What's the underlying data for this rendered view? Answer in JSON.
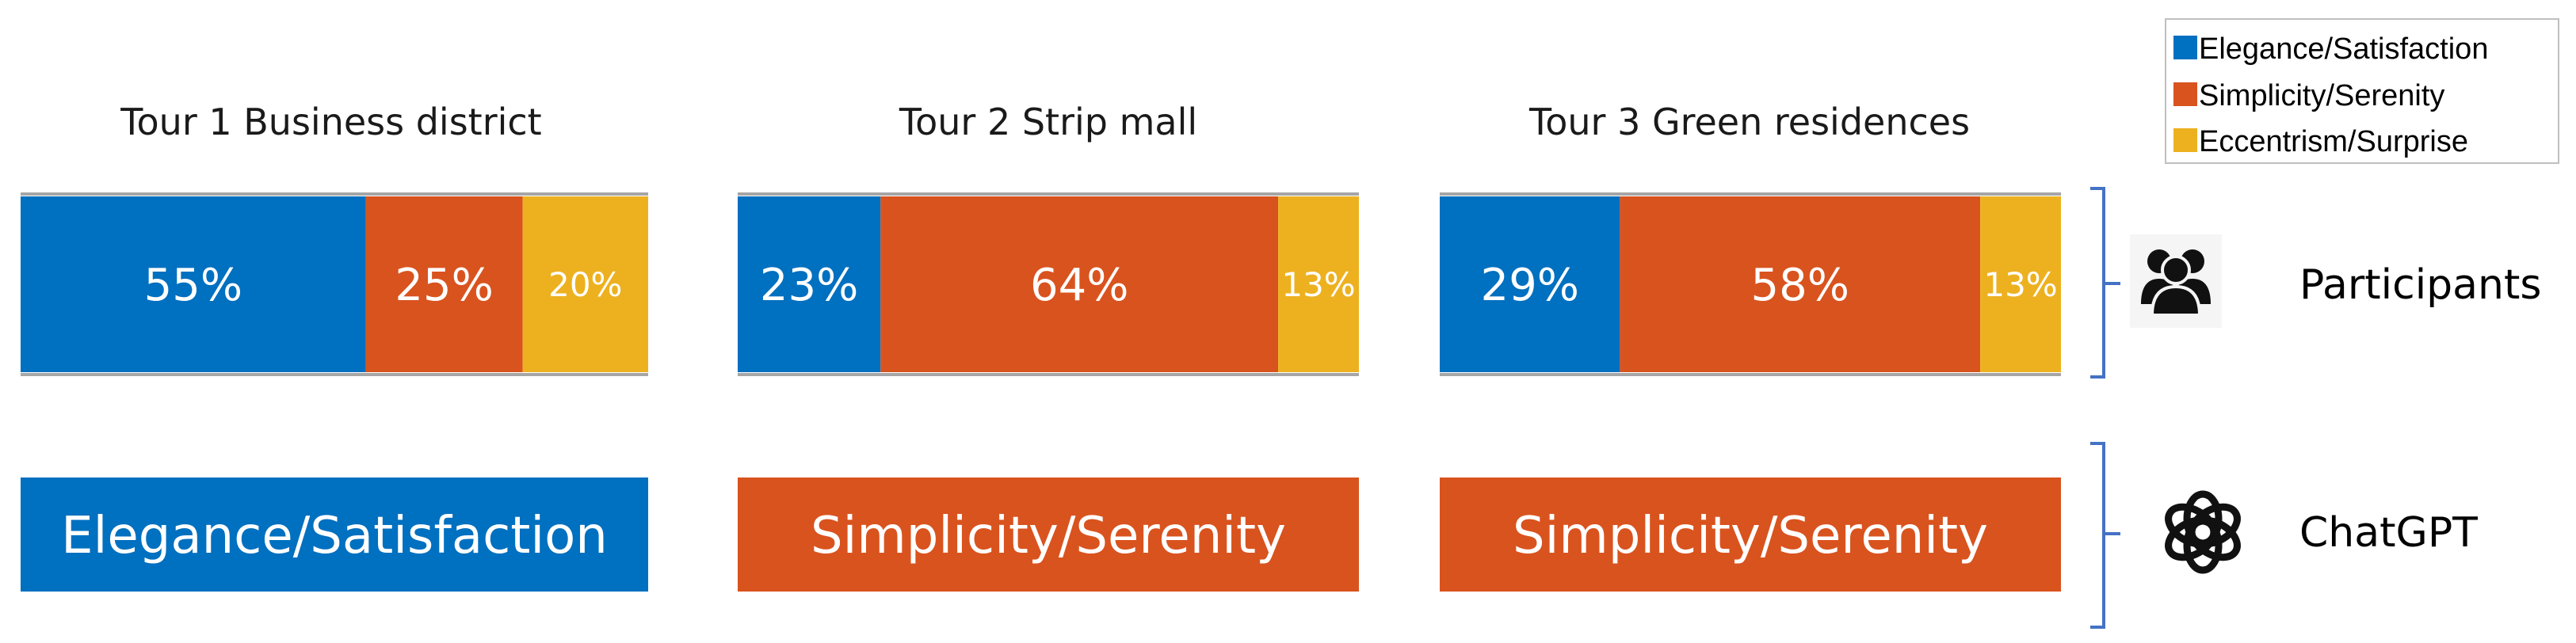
{
  "colors": {
    "elegance": "#0070C0",
    "simplicity": "#D9531E",
    "eccentrism": "#EDB120",
    "bracket": "#4472C4"
  },
  "legend": {
    "items": [
      {
        "label": "Elegance/Satisfaction",
        "color_key": "elegance"
      },
      {
        "label": "Simplicity/Serenity",
        "color_key": "simplicity"
      },
      {
        "label": "Eccentrism/Surprise",
        "color_key": "eccentrism"
      }
    ]
  },
  "rows": {
    "participants": {
      "label": "Participants",
      "icon": "people-group-icon"
    },
    "chatgpt": {
      "label": "ChatGPT",
      "icon": "openai-logo-icon"
    }
  },
  "chart_data": {
    "type": "bar",
    "orientation": "horizontal-stacked-100",
    "series_names": [
      "Elegance/Satisfaction",
      "Simplicity/Serenity",
      "Eccentrism/Surprise"
    ],
    "tours": [
      {
        "title": "Tour 1 Business district",
        "participants": [
          {
            "category": "Elegance/Satisfaction",
            "value": 55,
            "label": "55%"
          },
          {
            "category": "Simplicity/Serenity",
            "value": 25,
            "label": "25%"
          },
          {
            "category": "Eccentrism/Surprise",
            "value": 20,
            "label": "20%"
          }
        ],
        "chatgpt": {
          "category": "Elegance/Satisfaction",
          "label": "Elegance/Satisfaction"
        }
      },
      {
        "title": "Tour 2 Strip mall",
        "participants": [
          {
            "category": "Elegance/Satisfaction",
            "value": 23,
            "label": "23%"
          },
          {
            "category": "Simplicity/Serenity",
            "value": 64,
            "label": "64%"
          },
          {
            "category": "Eccentrism/Surprise",
            "value": 13,
            "label": "13%"
          }
        ],
        "chatgpt": {
          "category": "Simplicity/Serenity",
          "label": "Simplicity/Serenity"
        }
      },
      {
        "title": "Tour 3 Green residences",
        "participants": [
          {
            "category": "Elegance/Satisfaction",
            "value": 29,
            "label": "29%"
          },
          {
            "category": "Simplicity/Serenity",
            "value": 58,
            "label": "58%"
          },
          {
            "category": "Eccentrism/Surprise",
            "value": 13,
            "label": "13%"
          }
        ],
        "chatgpt": {
          "category": "Simplicity/Serenity",
          "label": "Simplicity/Serenity"
        }
      }
    ],
    "legend_position": "top-right",
    "grid": false
  }
}
